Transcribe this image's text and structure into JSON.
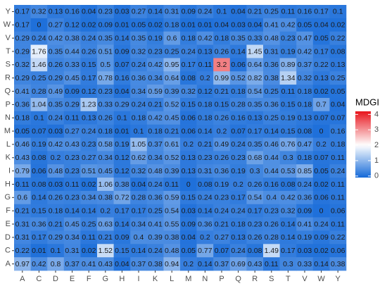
{
  "chart_data": {
    "type": "heatmap",
    "x_categories": [
      "A",
      "C",
      "D",
      "E",
      "F",
      "G",
      "H",
      "I",
      "K",
      "L",
      "M",
      "N",
      "P",
      "Q",
      "R",
      "S",
      "T",
      "V",
      "W",
      "Y"
    ],
    "y_categories": [
      "Y",
      "W",
      "V",
      "T",
      "S",
      "R",
      "Q",
      "P",
      "N",
      "M",
      "L",
      "K",
      "I",
      "H",
      "G",
      "F",
      "E",
      "D",
      "C",
      "A"
    ],
    "values": [
      [
        0.17,
        0.32,
        0.13,
        0.16,
        0.04,
        0.23,
        0.03,
        0.27,
        0.14,
        0.31,
        0.09,
        0.24,
        0.1,
        0.04,
        0.21,
        0.25,
        0.11,
        0.16,
        0.17,
        0.1
      ],
      [
        0.17,
        0,
        0.27,
        0.12,
        0.02,
        0.09,
        0.01,
        0.05,
        0.02,
        0.18,
        0.01,
        0.01,
        0.04,
        0.03,
        0.04,
        0.41,
        0.42,
        0.05,
        0.04,
        0.02
      ],
      [
        0.29,
        0.24,
        0.42,
        0.38,
        0.24,
        0.35,
        0.14,
        0.35,
        0.19,
        0.6,
        0.18,
        0.42,
        0.18,
        0.35,
        0.33,
        0.48,
        0.23,
        0.47,
        0.05,
        0.22
      ],
      [
        0.29,
        1.76,
        0.35,
        0.44,
        0.26,
        0.51,
        0.09,
        0.32,
        0.23,
        0.25,
        0.24,
        0.13,
        0.26,
        0.14,
        1.45,
        0.31,
        0.19,
        0.42,
        0.17,
        0.08
      ],
      [
        0.32,
        1.46,
        0.26,
        0.33,
        0.15,
        0.5,
        0.07,
        0.24,
        0.42,
        0.95,
        0.17,
        0.11,
        3.2,
        0.06,
        0.64,
        0.36,
        0.89,
        0.37,
        0.22,
        0.13
      ],
      [
        0.29,
        0.25,
        0.29,
        0.45,
        0.17,
        0.78,
        0.16,
        0.36,
        0.34,
        0.64,
        0.08,
        0.2,
        0.99,
        0.52,
        0.82,
        0.38,
        1.34,
        0.32,
        0.13,
        0.25
      ],
      [
        0.41,
        0.28,
        0.49,
        0.09,
        0.12,
        0.23,
        0.04,
        0.34,
        0.59,
        0.39,
        0.32,
        0.12,
        0.21,
        0.18,
        0.54,
        0.25,
        0.11,
        0.18,
        0.02,
        0.05
      ],
      [
        0.36,
        1.04,
        0.35,
        0.29,
        1.23,
        0.33,
        0.29,
        0.24,
        0.21,
        0.52,
        0.15,
        0.18,
        0.15,
        0.28,
        0.35,
        0.36,
        0.15,
        0.18,
        0.7,
        0.04
      ],
      [
        0.18,
        0.1,
        0.24,
        0.11,
        0.13,
        0.26,
        0.1,
        0.18,
        0.42,
        0.45,
        0.06,
        0.18,
        0.26,
        0.16,
        0.13,
        0.25,
        0.19,
        0.13,
        0.07,
        0.07
      ],
      [
        0.05,
        0.07,
        0.03,
        0.27,
        0.24,
        0.18,
        0.01,
        0.1,
        0.18,
        0.21,
        0.06,
        0.14,
        0.2,
        0.07,
        0.17,
        0.14,
        0.15,
        0.08,
        0,
        0.16
      ],
      [
        0.46,
        0.19,
        0.42,
        0.43,
        0.23,
        0.58,
        0.19,
        1.05,
        0.37,
        0.61,
        0.2,
        0.21,
        0.49,
        0.24,
        0.35,
        0.46,
        0.76,
        0.47,
        0.2,
        0.18
      ],
      [
        0.43,
        0.08,
        0.2,
        0.23,
        0.27,
        0.34,
        0.12,
        0.62,
        0.34,
        0.52,
        0.13,
        0.23,
        0.26,
        0.23,
        0.68,
        0.44,
        0.3,
        0.18,
        0.07,
        0.11
      ],
      [
        0.79,
        0.06,
        0.48,
        0.23,
        0.51,
        0.45,
        0.12,
        0.32,
        0.48,
        0.39,
        0.13,
        0.31,
        0.36,
        0.19,
        0.3,
        0.44,
        0.53,
        0.85,
        0.05,
        0.24
      ],
      [
        0.11,
        0.08,
        0.03,
        0.11,
        0.02,
        1.06,
        0.38,
        0.04,
        0.24,
        0.11,
        0,
        0.08,
        0.19,
        0.2,
        0.26,
        0.16,
        0.08,
        0.24,
        0.02,
        0.11
      ],
      [
        0.6,
        0.14,
        0.26,
        0.23,
        0.34,
        0.38,
        0.72,
        0.28,
        0.36,
        0.59,
        0.15,
        0.24,
        0.23,
        0.17,
        0.54,
        0.4,
        0.42,
        0.36,
        0.06,
        0.11
      ],
      [
        0.21,
        0.15,
        0.18,
        0.14,
        0.14,
        0.2,
        0.17,
        0.17,
        0.25,
        0.54,
        0.03,
        0.14,
        0.24,
        0.24,
        0.17,
        0.23,
        0.32,
        0.09,
        0,
        0.06
      ],
      [
        0.31,
        0.36,
        0.21,
        0.45,
        0.25,
        0.63,
        0.14,
        0.34,
        0.41,
        0.55,
        0.09,
        0.36,
        0.21,
        0.18,
        0.23,
        0.26,
        0.14,
        0.41,
        0.24,
        0.11
      ],
      [
        0.31,
        0.17,
        0.29,
        0.34,
        0.11,
        0.21,
        0.09,
        0.4,
        0.39,
        0.38,
        0.04,
        0.2,
        0.27,
        0.13,
        0.26,
        0.28,
        0.14,
        0.19,
        0.09,
        0.22
      ],
      [
        0.22,
        0.01,
        0.1,
        0.31,
        0.02,
        1.52,
        0.15,
        0.14,
        0.24,
        0.48,
        0.05,
        0.77,
        0.07,
        0.24,
        0.08,
        1.49,
        0.17,
        0.03,
        0.02,
        0.06
      ],
      [
        0.97,
        0.42,
        0.8,
        0.37,
        0.41,
        0.43,
        0.04,
        0.37,
        0.38,
        0.94,
        0.2,
        0.14,
        0.37,
        0.69,
        0.43,
        0.11,
        0.3,
        0.33,
        0.14,
        0.38
      ]
    ],
    "colorbar": {
      "title": "MDGI",
      "lim": [
        -0.1,
        4.2
      ],
      "ticks": [
        0,
        1,
        2,
        3,
        4
      ],
      "colors": {
        "low": "#1469d8",
        "mid": "#ffffff",
        "high": "#e8141c"
      },
      "midpoint": 2
    }
  }
}
